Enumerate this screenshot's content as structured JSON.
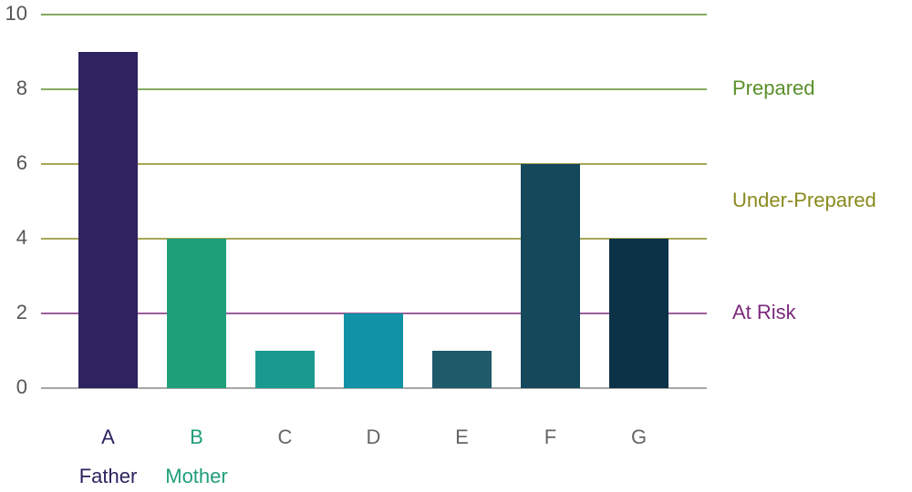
{
  "chart_data": {
    "type": "bar",
    "categories": [
      "A",
      "B",
      "C",
      "D",
      "E",
      "F",
      "G"
    ],
    "category_label_colors": [
      "#2e2260",
      "#1f9e7a",
      "#666666",
      "#666666",
      "#666666",
      "#666666",
      "#666666"
    ],
    "category_sublabels": [
      "Father",
      "Mother",
      null,
      null,
      null,
      null,
      null
    ],
    "values": [
      9,
      4,
      1,
      2,
      1,
      6,
      4
    ],
    "colors": [
      "#2e2260",
      "#1f9e7a",
      "#1a9a8e",
      "#1192a6",
      "#1e5a6a",
      "#15485a",
      "#0b3247"
    ],
    "ylim": [
      0,
      10
    ],
    "yticks": [
      0,
      2,
      4,
      6,
      8,
      10
    ],
    "grid": true,
    "grid_colors": [
      "#888888",
      "#7b2a7b",
      "#8a8a1e",
      "#8a8a1e",
      "#5a8f2a",
      "#5a8f2a"
    ],
    "annotations": [
      {
        "text": "Prepared",
        "y": 8,
        "color": "#5a8f2a"
      },
      {
        "text": "Under-Prepared",
        "y": 5,
        "color": "#8a8a1e"
      },
      {
        "text": "At Risk",
        "y": 2,
        "color": "#7b2a7b"
      }
    ]
  }
}
